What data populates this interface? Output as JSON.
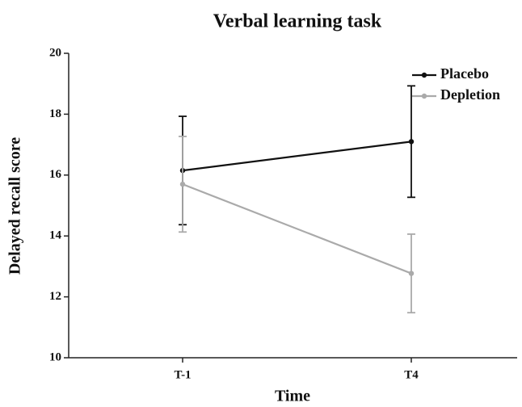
{
  "chart_data": {
    "type": "line",
    "title": "Verbal learning task",
    "x_label": "Time",
    "y_label": "Delayed recall score",
    "categories": [
      "T-1",
      "T4"
    ],
    "series": [
      {
        "name": "Placebo",
        "color": "#111111",
        "values": [
          16.15,
          17.1
        ],
        "errors": [
          1.78,
          1.83
        ]
      },
      {
        "name": "Depletion",
        "color": "#aaaaaa",
        "values": [
          15.7,
          12.77
        ],
        "errors": [
          1.57,
          1.29
        ]
      }
    ],
    "ylim": [
      10,
      20
    ],
    "yticks": [
      10,
      12,
      14,
      16,
      18,
      20
    ],
    "legend": "upper right"
  }
}
